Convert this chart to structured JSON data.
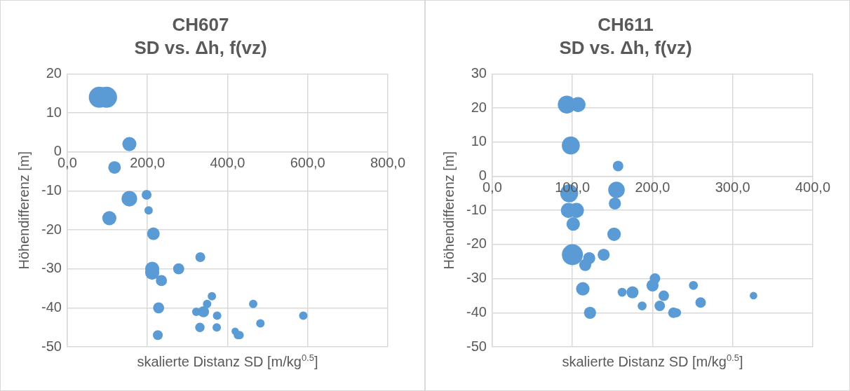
{
  "chart_data": [
    {
      "type": "bubble",
      "title": "CH607",
      "subtitle": "SD vs. Δh, f(vz)",
      "xlabel": "skalierte Distanz SD [m/kg$^{0.5}$]",
      "ylabel": "Höhendifferenz [m]",
      "color": "#5b9bd5",
      "grid": true,
      "x": [
        80,
        98,
        155,
        118,
        155,
        198,
        203,
        105,
        215,
        332,
        212,
        212,
        278,
        235,
        361,
        349,
        322,
        340,
        464,
        228,
        374,
        589,
        482,
        331,
        373,
        226,
        419,
        430,
        426
      ],
      "values": [
        14,
        14,
        2,
        -4,
        -12,
        -11,
        -15,
        -17,
        -21,
        -27,
        -30,
        -31,
        -30,
        -33,
        -37,
        -39,
        -41,
        -41,
        -39,
        -40,
        -42,
        -42,
        -44,
        -45,
        -45,
        -47,
        -46,
        -47,
        -47
      ],
      "sizes": [
        1,
        1,
        0.45,
        0.36,
        0.55,
        0.22,
        0.16,
        0.45,
        0.36,
        0.22,
        0.45,
        0.45,
        0.28,
        0.28,
        0.16,
        0.16,
        0.16,
        0.28,
        0.16,
        0.28,
        0.16,
        0.16,
        0.16,
        0.2,
        0.16,
        0.22,
        0.12,
        0.16,
        0.16
      ],
      "xlim": [
        0,
        800
      ],
      "xticks": [
        {
          "value": 0,
          "label": "0,0"
        },
        {
          "value": 200,
          "label": "200,0"
        },
        {
          "value": 400,
          "label": "400,0"
        },
        {
          "value": 600,
          "label": "600,0"
        },
        {
          "value": 800,
          "label": "800,0"
        }
      ],
      "ylim": [
        -50,
        20
      ],
      "yticks": [
        -50,
        -40,
        -30,
        -20,
        -10,
        0,
        10,
        20
      ]
    },
    {
      "type": "bubble",
      "title": "CH611",
      "subtitle": "SD vs. Δh, f(vz)",
      "xlabel": "skalierte Distanz SD [m/kg$^{0.5}$]",
      "ylabel": "Höhendifferenz [m]",
      "color": "#5b9bd5",
      "grid": true,
      "x": [
        93,
        107,
        98,
        157,
        96,
        155,
        153,
        95,
        105,
        101,
        152,
        100,
        139,
        121,
        116,
        113,
        122,
        162,
        175,
        187,
        203,
        200,
        214,
        209,
        226,
        230,
        251,
        260,
        326
      ],
      "values": [
        21,
        21,
        9,
        3,
        -5,
        -4,
        -8,
        -10,
        -10,
        -14,
        -17,
        -23,
        -23,
        -24,
        -26,
        -33,
        -40,
        -34,
        -34,
        -38,
        -30,
        -32,
        -35,
        -38,
        -40,
        -40,
        -32,
        -37,
        -35
      ],
      "sizes": [
        0.73,
        0.51,
        0.73,
        0.25,
        0.73,
        0.62,
        0.33,
        0.51,
        0.51,
        0.41,
        0.41,
        1,
        0.33,
        0.33,
        0.33,
        0.41,
        0.33,
        0.18,
        0.33,
        0.18,
        0.25,
        0.33,
        0.25,
        0.25,
        0.25,
        0.18,
        0.18,
        0.25,
        0.13
      ],
      "xlim": [
        0,
        400
      ],
      "xticks": [
        {
          "value": 0,
          "label": "0,0"
        },
        {
          "value": 100,
          "label": "100,0"
        },
        {
          "value": 200,
          "label": "200,0"
        },
        {
          "value": 300,
          "label": "300,0"
        },
        {
          "value": 400,
          "label": "400,0"
        }
      ],
      "ylim": [
        -50,
        30
      ],
      "yticks": [
        -50,
        -40,
        -30,
        -20,
        -10,
        0,
        10,
        20,
        30
      ]
    }
  ]
}
